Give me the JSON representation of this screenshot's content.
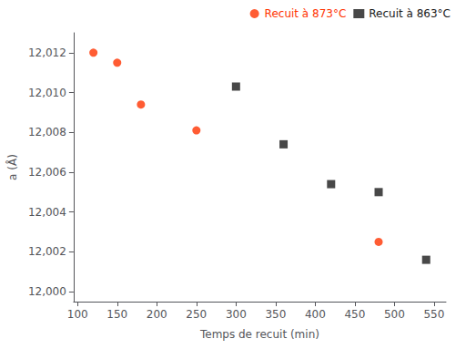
{
  "chart_data": {
    "type": "scatter",
    "xlabel": "Temps de recuit (min)",
    "ylabel": "a (Å)",
    "series": [
      {
        "name": "Recuit à 873°C",
        "color": "#ff3300",
        "marker": "circle",
        "x": [
          120,
          150,
          180,
          250,
          480
        ],
        "values": [
          12.012,
          12.0115,
          12.0094,
          12.0081,
          12.0025
        ]
      },
      {
        "name": "Recuit à 863°C",
        "color": "#1a1a1a",
        "marker": "square",
        "x": [
          300,
          360,
          420,
          480,
          540
        ],
        "values": [
          12.0103,
          12.0074,
          12.0054,
          12.005,
          12.0016
        ]
      }
    ],
    "xlim": [
      95,
      565
    ],
    "ylim": [
      11.9995,
      12.013
    ],
    "xticks": [
      100,
      150,
      200,
      250,
      300,
      350,
      400,
      450,
      500,
      550
    ],
    "yticks": [
      {
        "value": 12.0,
        "label": "12,000"
      },
      {
        "value": 12.002,
        "label": "12,002"
      },
      {
        "value": 12.004,
        "label": "12,004"
      },
      {
        "value": 12.006,
        "label": "12,006"
      },
      {
        "value": 12.008,
        "label": "12,008"
      },
      {
        "value": 12.01,
        "label": "12,010"
      },
      {
        "value": 12.012,
        "label": "12,012"
      }
    ],
    "grid": false,
    "legend": "upper right"
  }
}
